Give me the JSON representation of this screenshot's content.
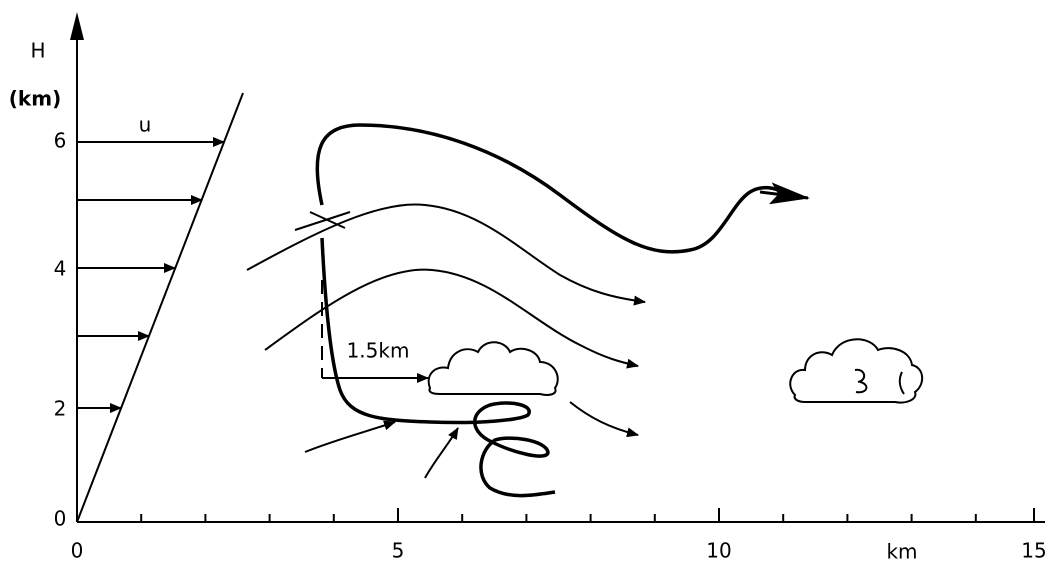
{
  "y_axis": {
    "label": "H",
    "unit": "(km)",
    "ticks": [
      "0",
      "2",
      "4",
      "6"
    ]
  },
  "x_axis": {
    "ticks": [
      "0",
      "5",
      "10",
      "15"
    ],
    "unit": "km"
  },
  "wind_label": "u",
  "distance_label": "1.5km"
}
